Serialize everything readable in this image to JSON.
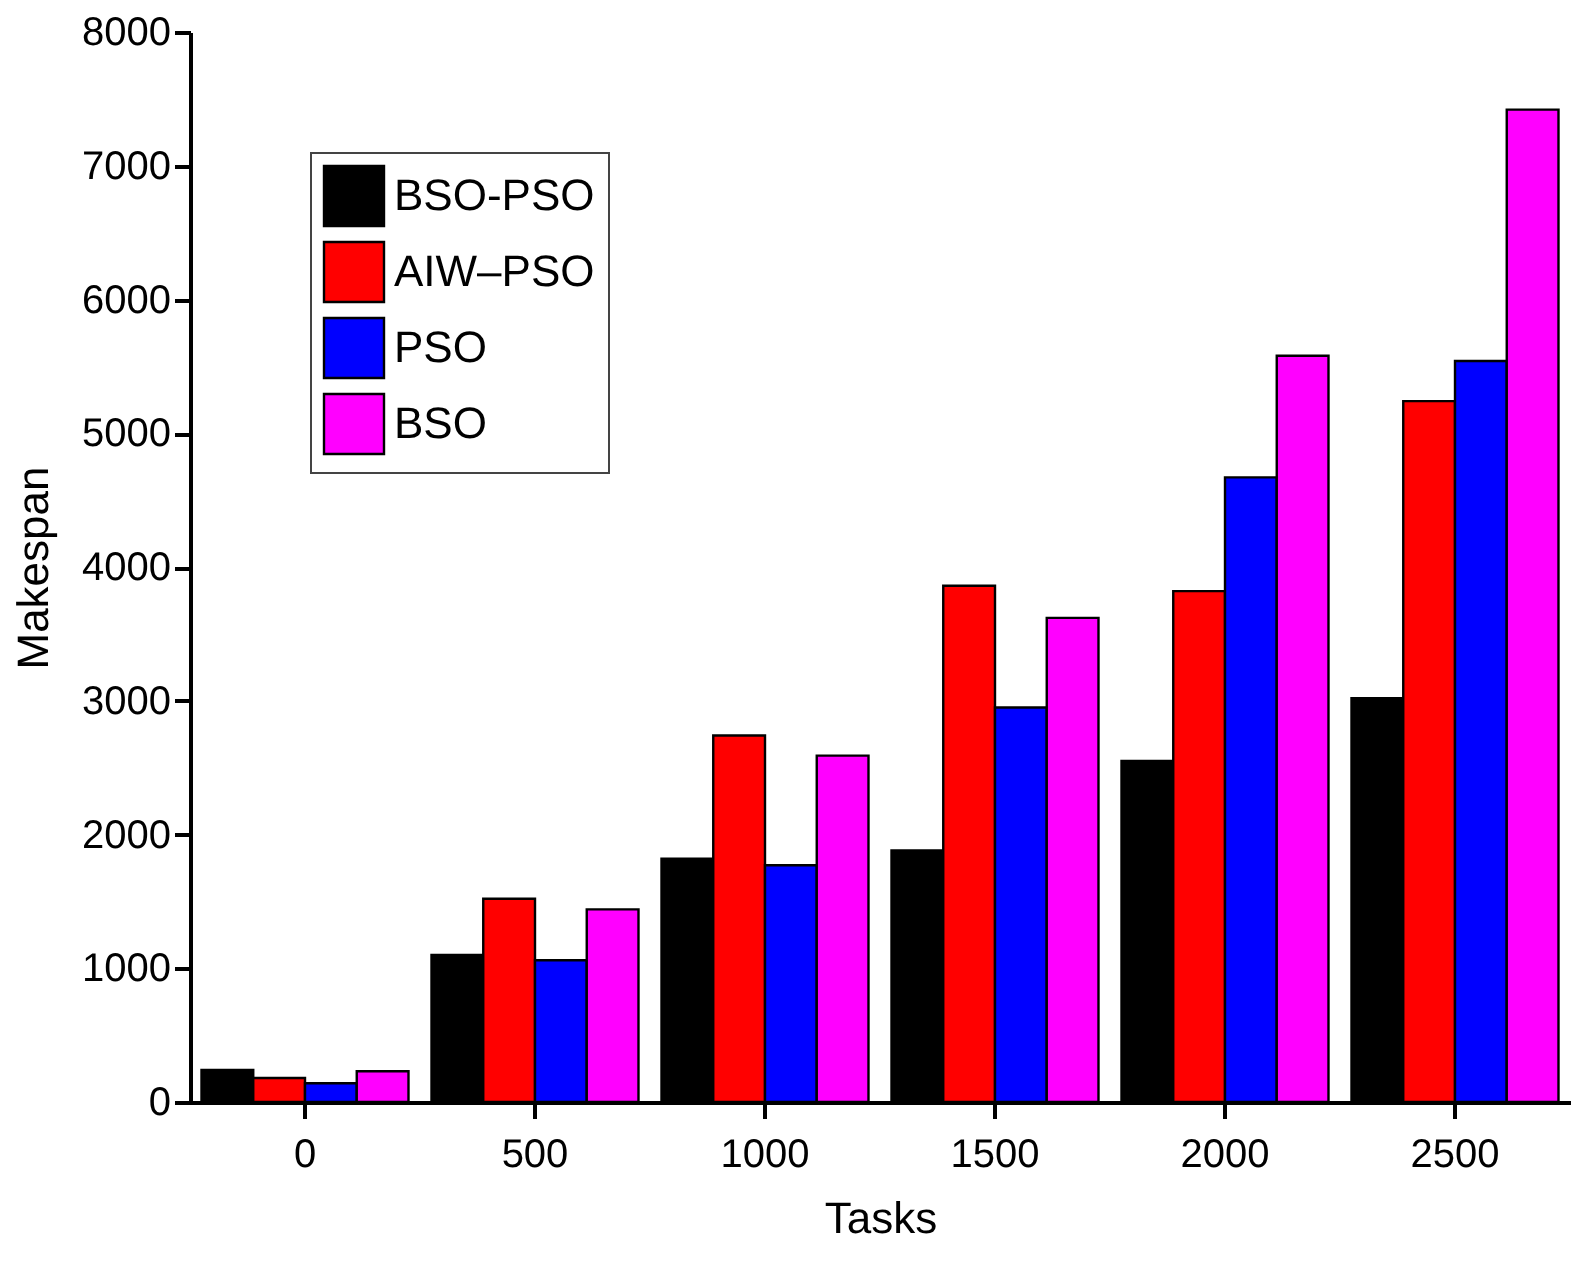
{
  "chart_data": {
    "type": "bar",
    "xlabel": "Tasks",
    "ylabel": "Makespan",
    "categories": [
      "0",
      "500",
      "1000",
      "1500",
      "2000",
      "2500"
    ],
    "series": [
      {
        "name": "BSO-PSO",
        "color": "#000000",
        "values": [
          240,
          1100,
          1820,
          1880,
          2550,
          3020
        ]
      },
      {
        "name": "AIW–PSO",
        "color": "#ff0000",
        "values": [
          180,
          1520,
          2740,
          3860,
          3820,
          5240
        ]
      },
      {
        "name": "PSO",
        "color": "#0000ff",
        "values": [
          140,
          1060,
          1770,
          2950,
          4670,
          5540
        ]
      },
      {
        "name": "BSO",
        "color": "#ff00ff",
        "values": [
          230,
          1440,
          2590,
          3620,
          5580,
          7420
        ]
      }
    ],
    "ylim": [
      0,
      8000
    ],
    "yticks": [
      0,
      1000,
      2000,
      3000,
      4000,
      5000,
      6000,
      7000,
      8000
    ],
    "grid": false,
    "legend": "top left"
  }
}
